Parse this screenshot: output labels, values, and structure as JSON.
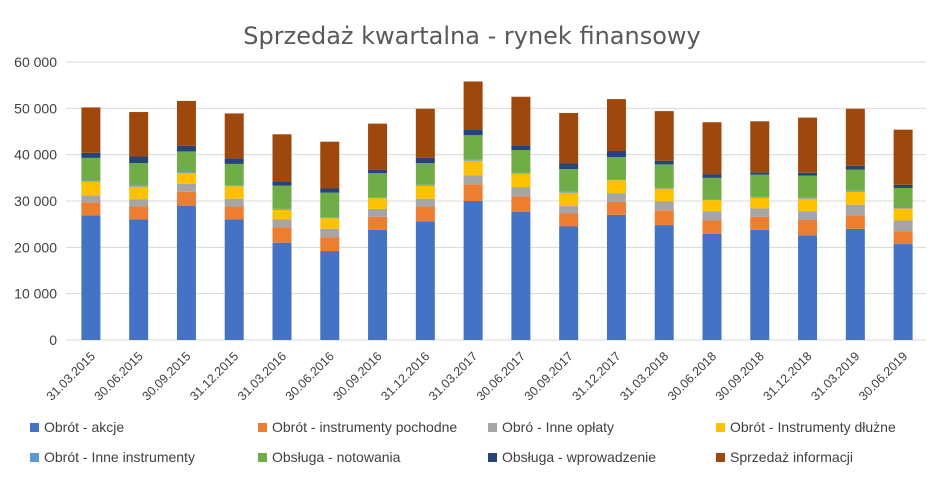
{
  "chart_data": {
    "type": "bar",
    "stacked": true,
    "title": "Sprzedaż kwartalna - rynek finansowy",
    "xlabel": "",
    "ylabel": "",
    "ylim": [
      0,
      60000
    ],
    "yticks": [
      0,
      10000,
      20000,
      30000,
      40000,
      50000,
      60000
    ],
    "ytick_labels": [
      "0",
      "10 000",
      "20 000",
      "30 000",
      "40 000",
      "50 000",
      "60 000"
    ],
    "grid": true,
    "legend_position": "bottom",
    "categories": [
      "31.03.2015",
      "30.06.2015",
      "30.09.2015",
      "31.12.2015",
      "31.03.2016",
      "30.06.2016",
      "30.09.2016",
      "31.12.2016",
      "31.03.2017",
      "30.06.2017",
      "30.09.2017",
      "31.12.2017",
      "31.03.2018",
      "30.06.2018",
      "30.09.2018",
      "31.12.2018",
      "31.03.2019",
      "30.06.2019"
    ],
    "series": [
      {
        "name": "Obrót - akcje",
        "color": "#4472C4",
        "values": [
          26900,
          26000,
          29000,
          26000,
          21000,
          19200,
          23800,
          25600,
          30000,
          27700,
          24500,
          27000,
          24800,
          22900,
          23800,
          22600,
          24000,
          20700
        ]
      },
      {
        "name": "Obrót - instrumenty pochodne",
        "color": "#ED7D31",
        "values": [
          2800,
          2800,
          3000,
          2800,
          3300,
          3000,
          2800,
          3200,
          3600,
          3300,
          2800,
          2800,
          3200,
          2900,
          2800,
          3300,
          2900,
          2800
        ]
      },
      {
        "name": "Obró - Inne opłaty",
        "color": "#A5A5A5",
        "values": [
          1500,
          1600,
          1700,
          1700,
          1700,
          1800,
          1700,
          1700,
          1900,
          2000,
          1600,
          1900,
          1900,
          2000,
          1800,
          1900,
          2300,
          2300
        ]
      },
      {
        "name": "Obrót - Instrumenty dłużne",
        "color": "#FFC000",
        "values": [
          3000,
          2700,
          2300,
          2700,
          2100,
          2300,
          2300,
          2800,
          3200,
          2900,
          2900,
          2800,
          2800,
          2400,
          2300,
          2700,
          2800,
          2600
        ]
      },
      {
        "name": "Obrót - Inne instrumenty",
        "color": "#5B9BD5",
        "values": [
          200,
          200,
          200,
          200,
          200,
          200,
          200,
          200,
          200,
          200,
          200,
          200,
          200,
          200,
          200,
          200,
          200,
          200
        ]
      },
      {
        "name": "Obsługa - notowania",
        "color": "#70AD47",
        "values": [
          4900,
          4900,
          4500,
          4600,
          5000,
          5300,
          5200,
          4700,
          5300,
          4900,
          4900,
          4800,
          5000,
          4600,
          4800,
          4800,
          4600,
          4200
        ]
      },
      {
        "name": "Obsługa - wprowadzenie",
        "color": "#264478",
        "values": [
          1100,
          1400,
          1200,
          1200,
          800,
          900,
          700,
          1100,
          1300,
          1000,
          1200,
          1300,
          800,
          800,
          500,
          600,
          800,
          700
        ]
      },
      {
        "name": "Sprzedaż informacji",
        "color": "#9E480E",
        "values": [
          9800,
          9600,
          9700,
          9700,
          10300,
          10100,
          10000,
          10600,
          10300,
          10500,
          10900,
          11200,
          10700,
          11200,
          11000,
          11900,
          12300,
          11900
        ]
      }
    ]
  }
}
